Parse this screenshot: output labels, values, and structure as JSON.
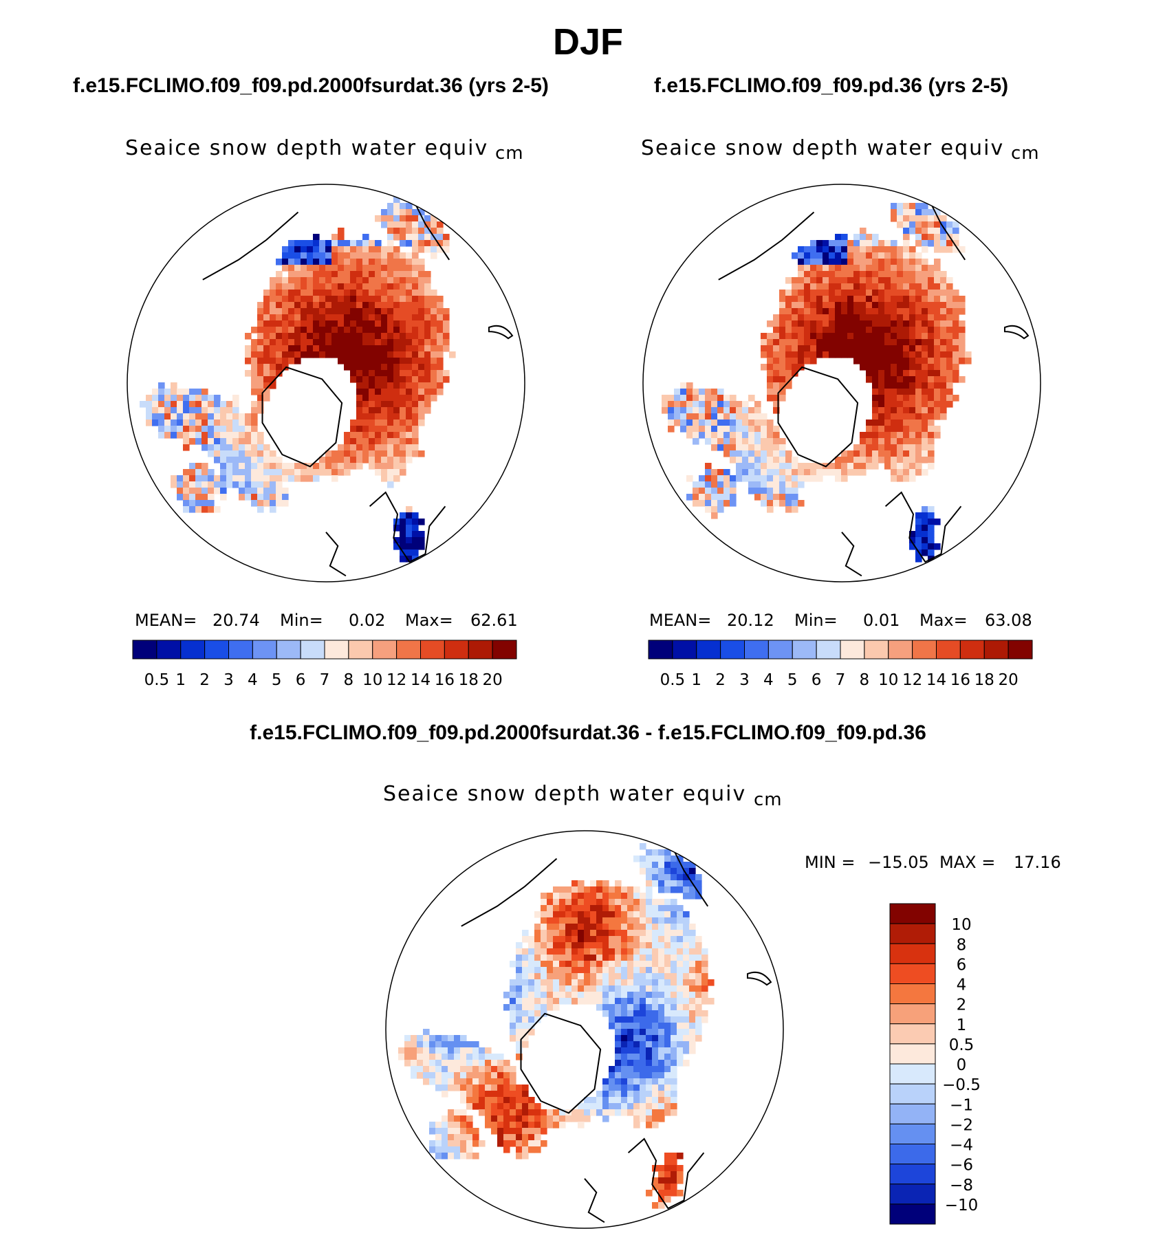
{
  "figure": {
    "title": "DJF"
  },
  "chart_data": [
    {
      "type": "heatmap",
      "title": "f.e15.FCLIMO.f09_f09.pd.2000fsurdat.36 (yrs 2-5)",
      "variable": "Seaice snow depth water equiv",
      "units": "cm",
      "projection": "north-polar-stereographic",
      "stats": {
        "mean_label": "MEAN=",
        "mean": "20.74",
        "min_label": "Min=",
        "min": "0.02",
        "max_label": "Max=",
        "max": "62.61"
      },
      "colorbar": {
        "orientation": "horizontal",
        "levels": [
          "0.5",
          "1",
          "2",
          "3",
          "4",
          "5",
          "6",
          "7",
          "8",
          "10",
          "12",
          "14",
          "16",
          "18",
          "20"
        ],
        "colors": [
          "#00007a",
          "#0010a6",
          "#0630d0",
          "#1a4ee6",
          "#3f6ef0",
          "#6d93f4",
          "#9cb9f7",
          "#c8dcfa",
          "#fde9dc",
          "#fbc9ae",
          "#f6a07e",
          "#f07548",
          "#e54c25",
          "#cf2e10",
          "#ad1a05",
          "#820300"
        ]
      }
    },
    {
      "type": "heatmap",
      "title": "f.e15.FCLIMO.f09_f09.pd.36 (yrs 2-5)",
      "variable": "Seaice snow depth water equiv",
      "units": "cm",
      "projection": "north-polar-stereographic",
      "stats": {
        "mean_label": "MEAN=",
        "mean": "20.12",
        "min_label": "Min=",
        "min": "0.01",
        "max_label": "Max=",
        "max": "63.08"
      },
      "colorbar": {
        "orientation": "horizontal",
        "levels": [
          "0.5",
          "1",
          "2",
          "3",
          "4",
          "5",
          "6",
          "7",
          "8",
          "10",
          "12",
          "14",
          "16",
          "18",
          "20"
        ],
        "colors": [
          "#00007a",
          "#0010a6",
          "#0630d0",
          "#1a4ee6",
          "#3f6ef0",
          "#6d93f4",
          "#9cb9f7",
          "#c8dcfa",
          "#fde9dc",
          "#fbc9ae",
          "#f6a07e",
          "#f07548",
          "#e54c25",
          "#cf2e10",
          "#ad1a05",
          "#820300"
        ]
      }
    },
    {
      "type": "heatmap",
      "title": "f.e15.FCLIMO.f09_f09.pd.2000fsurdat.36 - f.e15.FCLIMO.f09_f09.pd.36",
      "variable": "Seaice snow depth water equiv",
      "units": "cm",
      "projection": "north-polar-stereographic",
      "stats": {
        "min_label": "MIN =",
        "min": "−15.05",
        "max_label": "MAX =",
        "max": "17.16"
      },
      "colorbar": {
        "orientation": "vertical",
        "levels": [
          "10",
          "8",
          "6",
          "4",
          "2",
          "1",
          "0.5",
          "0",
          "−0.5",
          "−1",
          "−2",
          "−4",
          "−6",
          "−8",
          "−10"
        ],
        "colors": [
          "#820300",
          "#b01c06",
          "#d8320f",
          "#ee4d22",
          "#f4773f",
          "#f7a17a",
          "#fbcbb2",
          "#fde9dc",
          "#d8e9fc",
          "#b9d2fa",
          "#93b3f6",
          "#6590f1",
          "#3c6aea",
          "#1d45da",
          "#0a24b4",
          "#00007a"
        ]
      }
    }
  ]
}
